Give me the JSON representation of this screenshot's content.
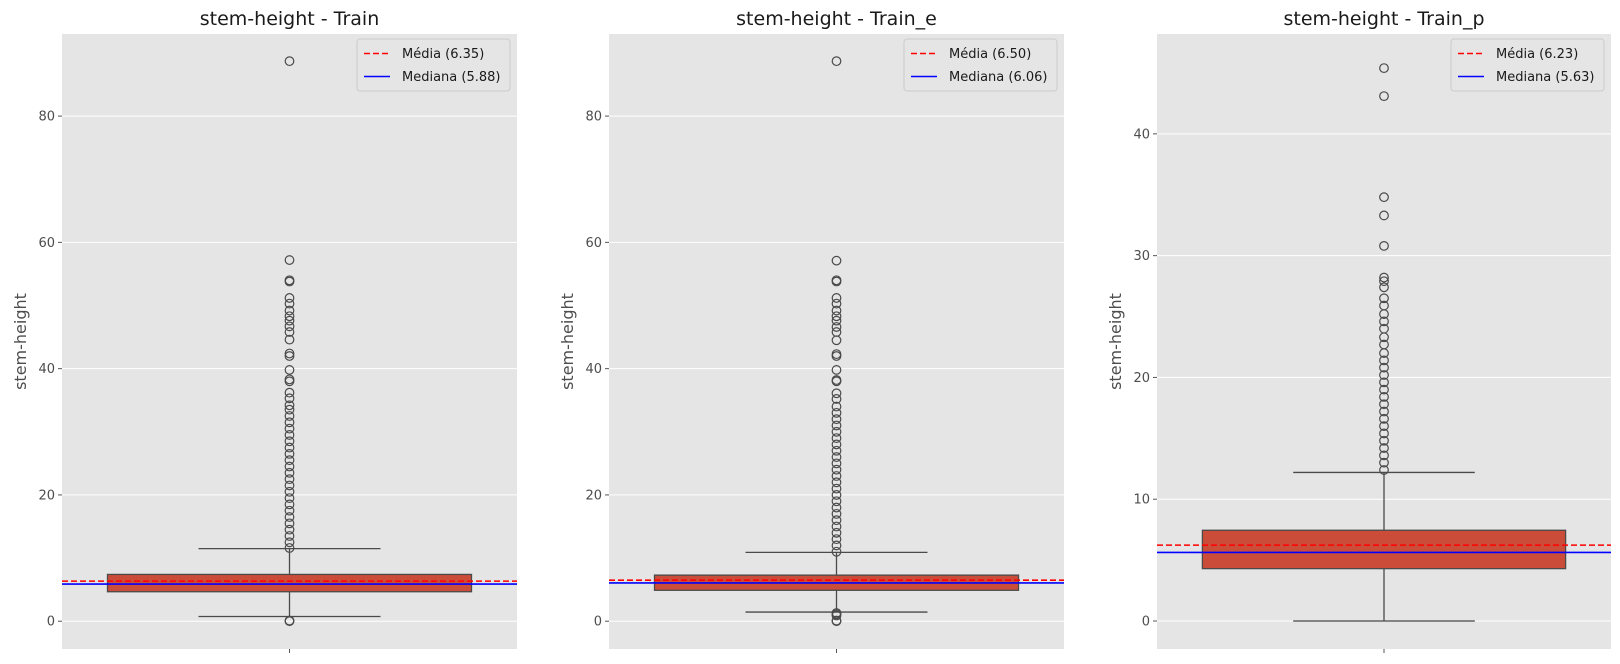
{
  "chart_data": [
    {
      "type": "box",
      "title": "stem-height - Train",
      "ylabel": "stem-height",
      "ylim": [
        -4.4,
        93
      ],
      "yticks": [
        0,
        20,
        40,
        60,
        80
      ],
      "box": {
        "q1": 4.67,
        "median": 5.88,
        "q3": 7.41,
        "whisker_low": 0.75,
        "whisker_high": 11.5,
        "color": "#cc4c3a"
      },
      "mean": 6.35,
      "legend": [
        "Média (6.35)",
        "Mediana (5.88)"
      ],
      "outliers": [
        0,
        0.1,
        11.6,
        12.5,
        13.5,
        14.5,
        15.5,
        16.5,
        17.5,
        18.5,
        19.5,
        20.5,
        21.5,
        22.5,
        23.5,
        24.5,
        25.5,
        26.5,
        27.5,
        28.5,
        29.5,
        30.5,
        31.5,
        32.5,
        33.5,
        34.2,
        35.3,
        36.2,
        38,
        38.3,
        39.8,
        42,
        42.4,
        44.6,
        45.8,
        46.7,
        47.6,
        48.3,
        49.2,
        50.3,
        51.2,
        53.8,
        54,
        57.2,
        88.7
      ]
    },
    {
      "type": "box",
      "title": "stem-height - Train_e",
      "ylabel": "stem-height",
      "ylim": [
        -4.4,
        93
      ],
      "yticks": [
        0,
        20,
        40,
        60,
        80
      ],
      "box": {
        "q1": 4.9,
        "median": 6.06,
        "q3": 7.3,
        "whisker_low": 1.45,
        "whisker_high": 10.9,
        "color": "#cc4c3a"
      },
      "mean": 6.5,
      "legend": [
        "Média (6.50)",
        "Mediana (6.06)"
      ],
      "outliers": [
        0,
        0.1,
        0.9,
        1.1,
        1.3,
        11,
        12,
        13,
        14,
        15,
        16,
        17,
        18,
        19,
        20,
        21,
        22,
        23,
        24,
        25,
        26,
        27,
        28,
        29,
        30,
        31,
        32,
        33,
        34,
        35.2,
        36.1,
        38,
        38.2,
        39.8,
        42,
        42.3,
        44.5,
        45.8,
        46.6,
        47.6,
        48.3,
        49.2,
        50.3,
        51.2,
        53.8,
        54,
        57.1,
        88.7
      ]
    },
    {
      "type": "box",
      "title": "stem-height - Train_p",
      "ylabel": "stem-height",
      "ylim": [
        -2.3,
        48.2
      ],
      "yticks": [
        0,
        10,
        20,
        30,
        40
      ],
      "box": {
        "q1": 4.3,
        "median": 5.63,
        "q3": 7.45,
        "whisker_low": 0,
        "whisker_high": 12.2,
        "color": "#cc4c3a"
      },
      "mean": 6.23,
      "legend": [
        "Média (6.23)",
        "Mediana (5.63)"
      ],
      "outliers": [
        12.4,
        13,
        13.6,
        14.2,
        14.8,
        15.4,
        16,
        16.6,
        17.2,
        17.8,
        18.4,
        19,
        19.6,
        20.2,
        20.8,
        21.4,
        22,
        22.7,
        23.3,
        24,
        24.6,
        25.2,
        25.9,
        26.5,
        27.4,
        27.9,
        28.2,
        30.8,
        33.3,
        34.8,
        43.1,
        45.4
      ]
    }
  ]
}
